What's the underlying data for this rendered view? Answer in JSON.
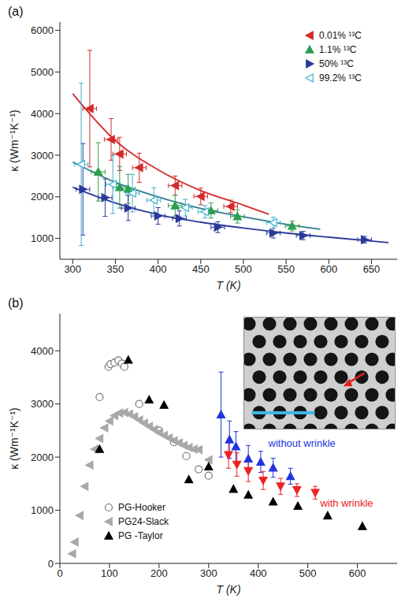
{
  "chart_data": [
    {
      "type": "scatter",
      "panel": "(a)",
      "x_label": "T (K)",
      "y_label": "κ (Wm⁻¹K⁻¹)",
      "xlim": [
        285,
        680
      ],
      "xticks": [
        300,
        350,
        400,
        450,
        500,
        550,
        600,
        650
      ],
      "ylim": [
        500,
        6200
      ],
      "yticks": [
        1000,
        2000,
        3000,
        4000,
        5000,
        6000
      ],
      "legend": "upper right",
      "series": [
        {
          "type": "line",
          "color": "#d42a2a",
          "line_style": "solid",
          "x": [
            300,
            350,
            400,
            450,
            500,
            530
          ],
          "values": [
            4480,
            3350,
            2650,
            2150,
            1800,
            1580
          ]
        },
        {
          "type": "line",
          "color": "#2f7f8f",
          "line_style": "solid",
          "x": [
            300,
            350,
            400,
            450,
            500,
            550,
            590
          ],
          "values": [
            2840,
            2350,
            2000,
            1720,
            1520,
            1340,
            1220
          ]
        },
        {
          "type": "line",
          "color": "#2b3a9a",
          "line_style": "solid",
          "x": [
            300,
            350,
            400,
            450,
            500,
            550,
            600,
            670
          ],
          "values": [
            2230,
            1850,
            1570,
            1390,
            1250,
            1130,
            1030,
            900
          ]
        },
        {
          "type": "scatter",
          "name": "0.01% ¹³C",
          "color": "#d42a2a",
          "marker": "triangle_left",
          "x": [
            320,
            345,
            355,
            378,
            420,
            450,
            485
          ],
          "values": [
            4120,
            3380,
            3030,
            2700,
            2270,
            2010,
            1770
          ],
          "yerr": [
            1400,
            500,
            400,
            350,
            230,
            200,
            150
          ],
          "xerr": [
            8,
            8,
            8,
            8,
            8,
            8,
            8
          ]
        },
        {
          "type": "scatter",
          "name": "1.1% ¹³C",
          "color": "#2e9e4f",
          "marker": "triangle_up",
          "x": [
            330,
            355,
            365,
            420,
            462,
            493,
            557
          ],
          "values": [
            2600,
            2230,
            2190,
            1790,
            1670,
            1530,
            1300
          ],
          "yerr": [
            700,
            500,
            350,
            250,
            180,
            160,
            120
          ],
          "xerr": [
            8,
            8,
            8,
            8,
            8,
            8,
            8
          ]
        },
        {
          "type": "scatter",
          "name": "50% ¹³C",
          "color": "#2b3a9a",
          "marker": "triangle_right",
          "x": [
            312,
            338,
            365,
            400,
            425,
            470,
            535,
            570,
            642
          ],
          "values": [
            2180,
            1980,
            1730,
            1540,
            1480,
            1270,
            1130,
            1070,
            970
          ],
          "yerr": [
            1100,
            450,
            300,
            200,
            180,
            130,
            120,
            100,
            80
          ],
          "xerr": [
            8,
            8,
            8,
            8,
            8,
            8,
            8,
            8,
            8
          ]
        },
        {
          "type": "scatter",
          "name": "99.2% ¹³C",
          "color": "#3fb0c8",
          "marker": "open_triangle_left",
          "x": [
            310,
            347,
            370,
            395,
            432,
            455,
            535
          ],
          "values": [
            2780,
            2300,
            2090,
            1920,
            1740,
            1640,
            1380
          ],
          "yerr": [
            1950,
            700,
            450,
            300,
            200,
            150,
            130
          ],
          "xerr": [
            8,
            8,
            8,
            8,
            8,
            8,
            8
          ]
        }
      ]
    },
    {
      "type": "scatter",
      "panel": "(b)",
      "x_label": "T (K)",
      "y_label": "κ (Wm⁻¹K⁻¹)",
      "xlim": [
        0,
        680
      ],
      "xticks": [
        0,
        100,
        200,
        300,
        400,
        500,
        600
      ],
      "ylim": [
        0,
        4700
      ],
      "yticks": [
        0,
        1000,
        2000,
        3000,
        4000
      ],
      "legend": "lower left",
      "annotations": [
        {
          "text": "without wrinkle",
          "color": "#2233dd"
        },
        {
          "text": "with wrinkle",
          "color": "#ee2222"
        }
      ],
      "series": [
        {
          "type": "scatter",
          "name": "PG-Hooker",
          "color": "#777777",
          "marker": "open_circle",
          "x": [
            80,
            98,
            102,
            110,
            118,
            125,
            130,
            160,
            200,
            230,
            255,
            280,
            300
          ],
          "values": [
            3130,
            3700,
            3750,
            3780,
            3820,
            3760,
            3700,
            3000,
            2500,
            2280,
            2020,
            1770,
            1650
          ]
        },
        {
          "type": "scatter",
          "name": "PG24-Slack",
          "color": "#a8a8a8",
          "marker": "triangle_left",
          "x": [
            25,
            30,
            40,
            50,
            60,
            70,
            80,
            90,
            100,
            110,
            120,
            130,
            140,
            150,
            160,
            170,
            180,
            190,
            200,
            210,
            220,
            230,
            240,
            250,
            260,
            270,
            280,
            300
          ],
          "values": [
            180,
            400,
            900,
            1450,
            1850,
            2150,
            2350,
            2550,
            2680,
            2780,
            2830,
            2840,
            2810,
            2760,
            2700,
            2640,
            2580,
            2520,
            2460,
            2410,
            2360,
            2310,
            2270,
            2220,
            2180,
            2150,
            2140,
            1950
          ]
        },
        {
          "type": "scatter",
          "name": "PG -Taylor",
          "color": "#000000",
          "marker": "triangle_up",
          "x": [
            80,
            138,
            180,
            210,
            260,
            300,
            350,
            380,
            430,
            480,
            540,
            610
          ],
          "values": [
            2150,
            3830,
            3080,
            2980,
            1580,
            1820,
            1400,
            1290,
            1160,
            1080,
            900,
            700
          ]
        },
        {
          "type": "scatter",
          "color": "#2233dd",
          "marker": "triangle_up",
          "x": [
            325,
            342,
            355,
            380,
            405,
            430,
            465
          ],
          "values": [
            2800,
            2330,
            2200,
            1970,
            1910,
            1800,
            1640
          ],
          "yerr": [
            800,
            350,
            280,
            250,
            200,
            180,
            150
          ]
        },
        {
          "type": "scatter",
          "color": "#ee2222",
          "marker": "triangle_down",
          "x": [
            340,
            357,
            380,
            410,
            445,
            478,
            515
          ],
          "values": [
            2040,
            1860,
            1740,
            1560,
            1450,
            1380,
            1330
          ],
          "yerr": [
            250,
            220,
            200,
            170,
            150,
            120,
            120
          ]
        }
      ]
    }
  ]
}
